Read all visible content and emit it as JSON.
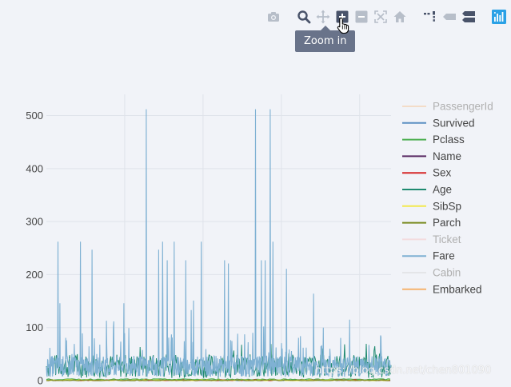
{
  "modebar": {
    "tooltip": "Zoom in",
    "buttons": [
      {
        "name": "camera-icon"
      },
      {
        "name": "zoom-icon"
      },
      {
        "name": "pan-icon"
      },
      {
        "name": "zoom-in-icon"
      },
      {
        "name": "zoom-out-icon"
      },
      {
        "name": "autoscale-icon"
      },
      {
        "name": "reset-axes-icon"
      },
      {
        "name": "spike-lines-icon"
      },
      {
        "name": "hover-closest-icon"
      },
      {
        "name": "hover-compare-icon"
      },
      {
        "name": "plotly-logo-icon"
      }
    ]
  },
  "colors": {
    "background": "#f1f3f8",
    "grid": "#dfe3ea",
    "axis_text": "#444444",
    "legend_text": "#444444",
    "legend_text_hidden": "#b0b0b0",
    "fare": "#7fb1d3",
    "age": "#1f8a70",
    "parch": "#8a9a2b"
  },
  "chart_data": {
    "type": "line",
    "title": "",
    "xlabel": "",
    "ylabel": "",
    "ylim": [
      0,
      540
    ],
    "yticks": [
      0,
      100,
      200,
      300,
      400,
      500
    ],
    "grid": true,
    "legend_placement": "right",
    "series": [
      {
        "name": "PassengerId",
        "color": "#f5c79a",
        "visible": false
      },
      {
        "name": "Survived",
        "color": "#5b8fc2",
        "visible": true
      },
      {
        "name": "Pclass",
        "color": "#4caf50",
        "visible": true
      },
      {
        "name": "Name",
        "color": "#5a2a63",
        "visible": true
      },
      {
        "name": "Sex",
        "color": "#d62728",
        "visible": true
      },
      {
        "name": "Age",
        "color": "#1f8a70",
        "visible": true
      },
      {
        "name": "SibSp",
        "color": "#f2e94e",
        "visible": true
      },
      {
        "name": "Parch",
        "color": "#7a8b20",
        "visible": true
      },
      {
        "name": "Ticket",
        "color": "#f5c6c6",
        "visible": false
      },
      {
        "name": "Fare",
        "color": "#7fb1d3",
        "visible": true
      },
      {
        "name": "Cabin",
        "color": "#d9d9d9",
        "visible": false
      },
      {
        "name": "Embarked",
        "color": "#f6b36e",
        "visible": true
      }
    ],
    "fare_spikes": [
      {
        "x": 30,
        "y": 262
      },
      {
        "x": 88,
        "y": 262
      },
      {
        "x": 118,
        "y": 247
      },
      {
        "x": 258,
        "y": 512
      },
      {
        "x": 290,
        "y": 247
      },
      {
        "x": 300,
        "y": 262
      },
      {
        "x": 312,
        "y": 227
      },
      {
        "x": 330,
        "y": 262
      },
      {
        "x": 360,
        "y": 227
      },
      {
        "x": 400,
        "y": 262
      },
      {
        "x": 460,
        "y": 227
      },
      {
        "x": 470,
        "y": 221
      },
      {
        "x": 540,
        "y": 512
      },
      {
        "x": 555,
        "y": 227
      },
      {
        "x": 565,
        "y": 227
      },
      {
        "x": 578,
        "y": 512
      },
      {
        "x": 585,
        "y": 262
      },
      {
        "x": 620,
        "y": 211
      },
      {
        "x": 690,
        "y": 164
      },
      {
        "x": 200,
        "y": 146
      },
      {
        "x": 35,
        "y": 146
      },
      {
        "x": 380,
        "y": 151
      }
    ],
    "x_count": 891
  },
  "watermark": "https://blog.csdn.net/chen801090"
}
